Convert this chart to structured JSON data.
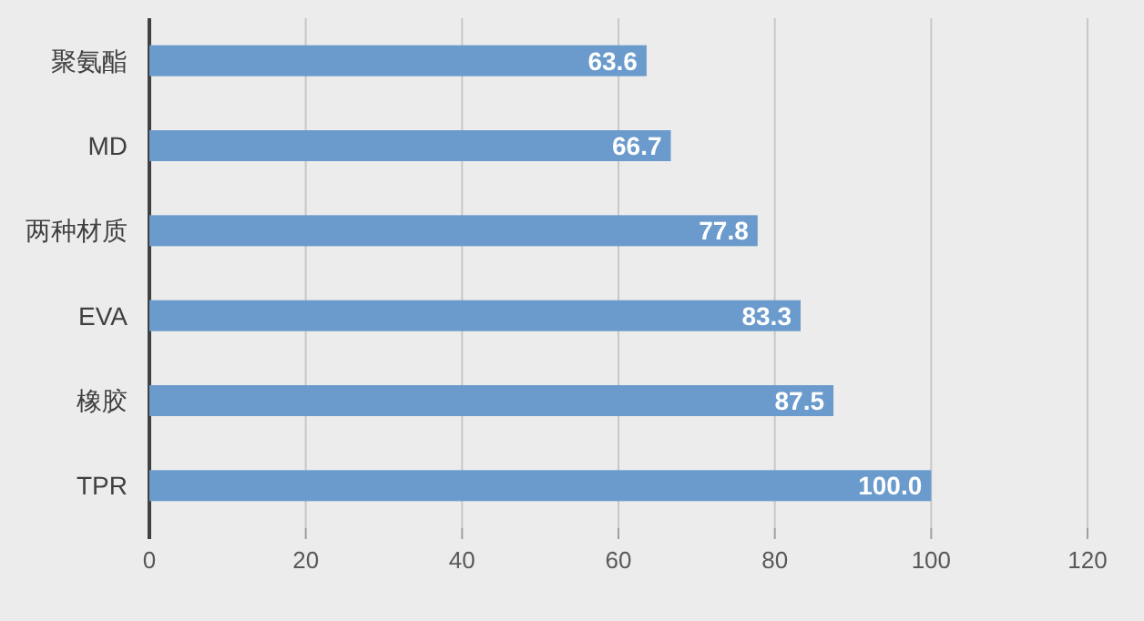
{
  "chart_data": {
    "type": "bar",
    "orientation": "horizontal",
    "categories": [
      "聚氨酯",
      "MD",
      "两种材质",
      "EVA",
      "橡胶",
      "TPR"
    ],
    "values": [
      63.6,
      66.7,
      77.8,
      83.3,
      87.5,
      100
    ],
    "value_labels": [
      "63.6",
      "66.7",
      "77.8",
      "83.3",
      "87.5",
      "100.0"
    ],
    "color": "#6b9bcc",
    "xlim": [
      0,
      120
    ],
    "xticks": [
      0,
      20,
      40,
      60,
      80,
      100,
      120
    ],
    "grid": "x"
  }
}
